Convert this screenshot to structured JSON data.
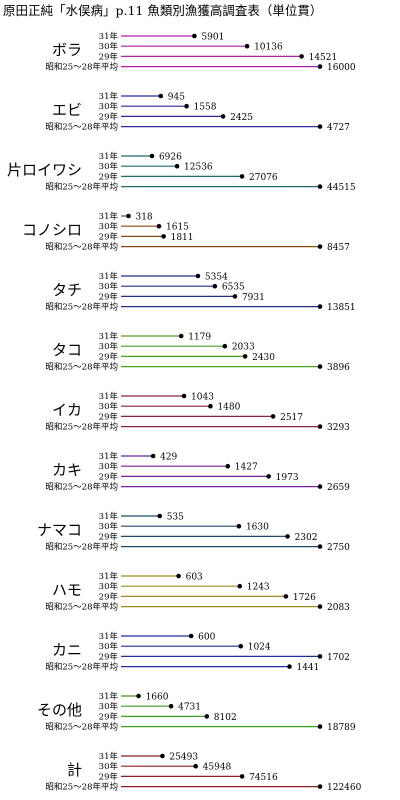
{
  "chart_data": {
    "type": "bar",
    "title": "原田正純「水俣病」p.11 魚類別漁獲高調査表（単位貫）",
    "period_labels": [
      "31年",
      "30年",
      "29年",
      "昭和25～28年平均"
    ],
    "groups": [
      {
        "name": "ボラ",
        "color": "#b01fb0",
        "values": [
          5901,
          10136,
          14521,
          16000
        ]
      },
      {
        "name": "エビ",
        "color": "#2a2a9a",
        "values": [
          945,
          1558,
          2425,
          4727
        ]
      },
      {
        "name": "片ロイワシ",
        "color": "#1f6b6b",
        "values": [
          6926,
          12536,
          27076,
          44515
        ]
      },
      {
        "name": "コノシロ",
        "color": "#8a4a14",
        "values": [
          318,
          1615,
          1811,
          8457
        ]
      },
      {
        "name": "タチ",
        "color": "#1f2f8a",
        "values": [
          5354,
          6535,
          7931,
          13851
        ]
      },
      {
        "name": "タコ",
        "color": "#4aa01f",
        "values": [
          1179,
          2033,
          2430,
          3896
        ]
      },
      {
        "name": "イカ",
        "color": "#8a1f4a",
        "values": [
          1043,
          1480,
          2517,
          3293
        ]
      },
      {
        "name": "カキ",
        "color": "#7a1fa0",
        "values": [
          429,
          1427,
          1973,
          2659
        ]
      },
      {
        "name": "ナマコ",
        "color": "#1f4a6a",
        "values": [
          535,
          1630,
          2302,
          2750
        ]
      },
      {
        "name": "ハモ",
        "color": "#a08a1f",
        "values": [
          603,
          1243,
          1726,
          2083
        ]
      },
      {
        "name": "カニ",
        "color": "#1f2f9a",
        "values": [
          600,
          1024,
          1702,
          1441
        ]
      },
      {
        "name": "その他",
        "color": "#3aa01f",
        "values": [
          1660,
          4731,
          8102,
          18789
        ]
      },
      {
        "name": "計",
        "color": "#8a1f2a",
        "values": [
          25493,
          45948,
          74516,
          122460
        ]
      }
    ]
  }
}
